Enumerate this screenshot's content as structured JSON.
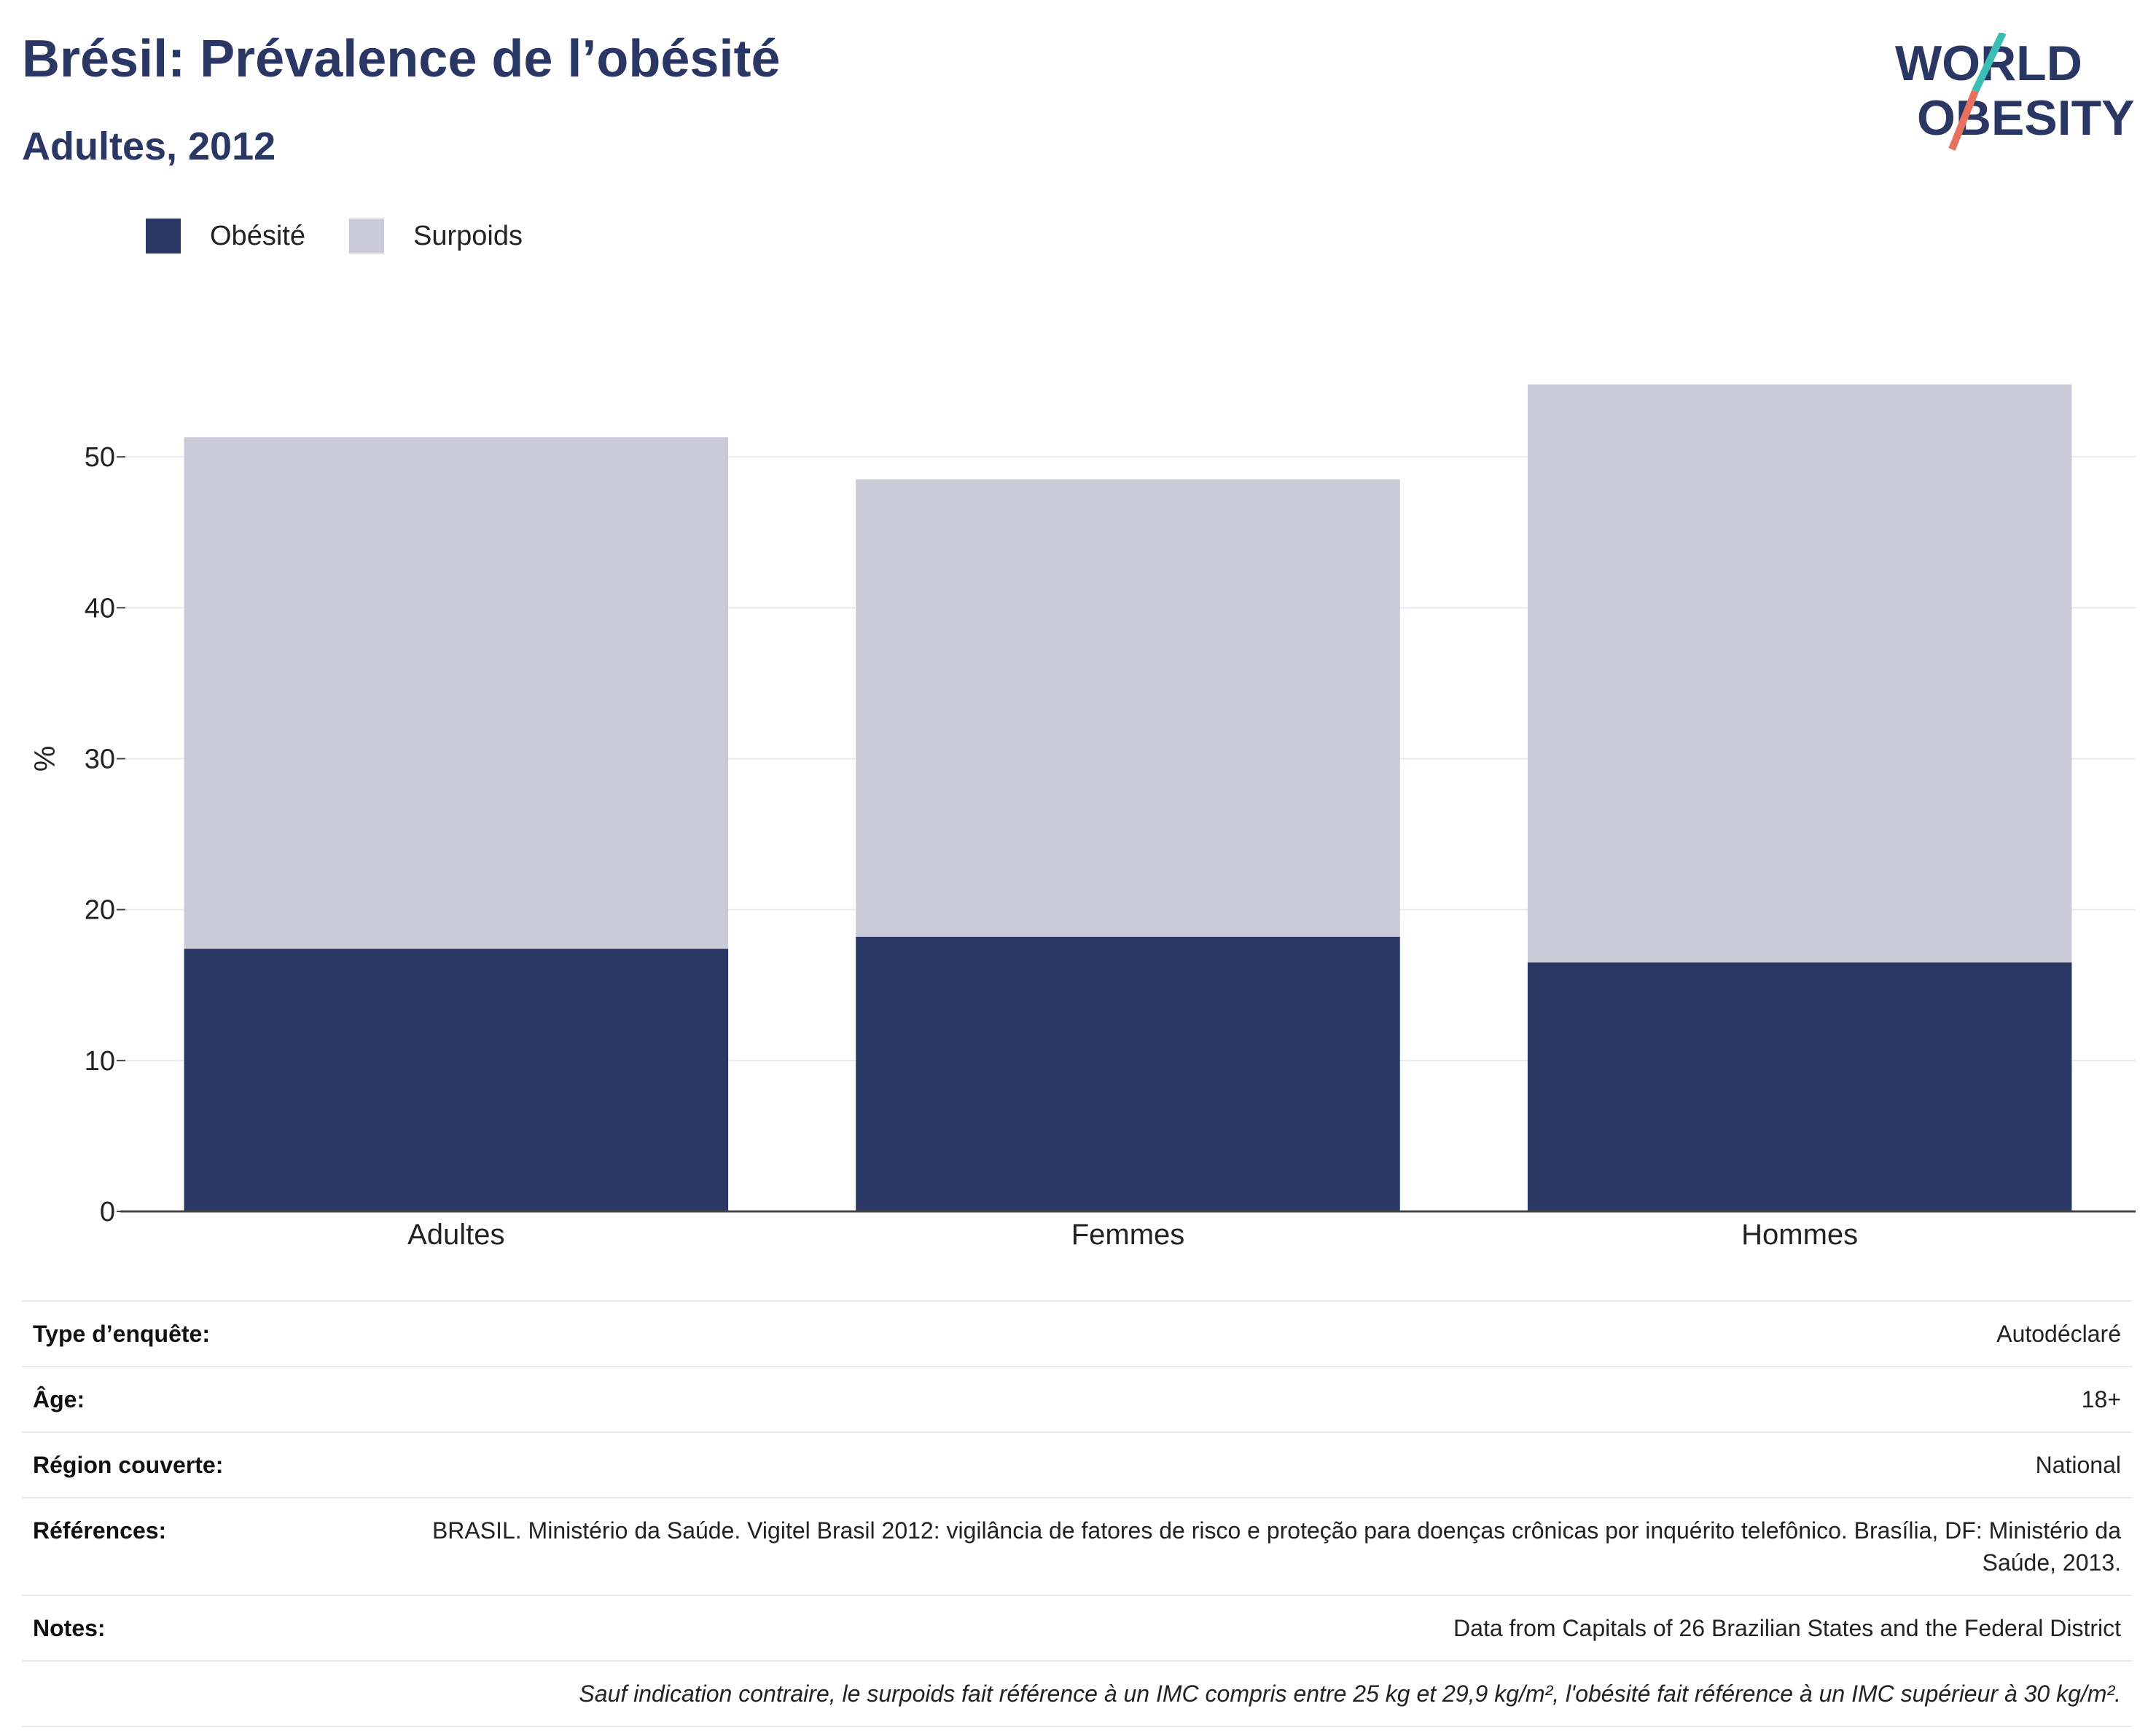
{
  "header": {
    "title": "Brésil: Prévalence de l’obésité",
    "subtitle": "Adultes, 2012"
  },
  "logo": {
    "line1": "WORLD",
    "line2": "OBESITY",
    "accent_colors": [
      "#3bbfb5",
      "#e7705f"
    ],
    "text_color": "#2a3764"
  },
  "legend": [
    {
      "label": "Obésité",
      "color": "#2a3764"
    },
    {
      "label": "Surpoids",
      "color": "#cacbd6"
    }
  ],
  "chart_data": {
    "type": "bar",
    "stacked": true,
    "categories": [
      "Adultes",
      "Femmes",
      "Hommes"
    ],
    "series": [
      {
        "name": "Obésité",
        "color": "#2a3764",
        "values": [
          17.4,
          18.2,
          16.5
        ]
      },
      {
        "name": "Surpoids",
        "color": "#cacbd6",
        "values": [
          33.9,
          30.3,
          38.3
        ]
      }
    ],
    "ylabel": "%",
    "ylim": [
      0,
      60
    ],
    "yticks": [
      0,
      10,
      20,
      30,
      40,
      50
    ],
    "grid": true,
    "legend_position": "top-left"
  },
  "info_table": [
    {
      "label": "Type d’enquête:",
      "value": "Autodéclaré"
    },
    {
      "label": "Âge:",
      "value": "18+"
    },
    {
      "label": "Région couverte:",
      "value": "National"
    },
    {
      "label": "Références:",
      "value": "BRASIL. Ministério da Saúde. Vigitel Brasil 2012: vigilância de fatores de risco e proteção para doenças crônicas por inquérito telefônico. Brasília, DF: Ministério da Saúde, 2013."
    },
    {
      "label": "Notes:",
      "value": "Data from Capitals of 26 Brazilian States and the Federal District"
    }
  ],
  "footnote": "Sauf indication contraire, le surpoids fait référence à un IMC compris entre 25 kg et 29,9 kg/m², l'obésité fait référence à un IMC supérieur à 30 kg/m²."
}
